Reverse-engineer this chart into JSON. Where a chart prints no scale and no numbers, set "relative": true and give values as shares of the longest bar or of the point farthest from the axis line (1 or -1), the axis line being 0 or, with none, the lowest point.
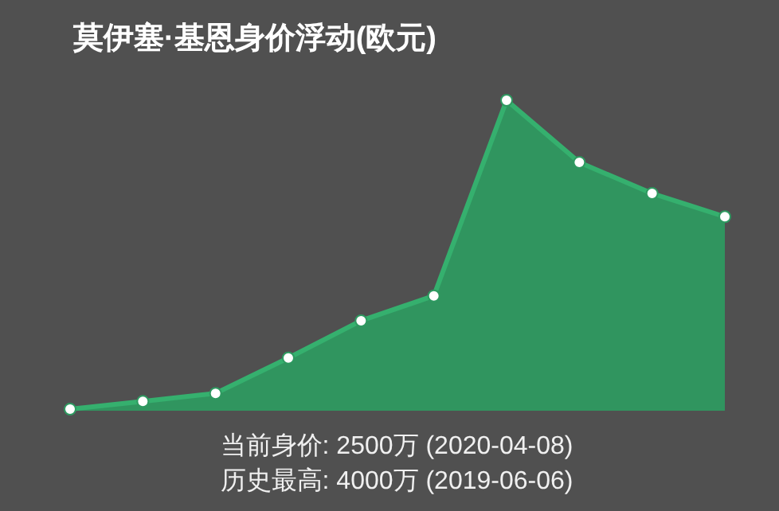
{
  "chart_data": {
    "type": "area",
    "title": "莫伊塞·基恩身价浮动(欧元)",
    "categories": [
      null,
      null,
      null,
      null,
      null,
      null,
      null,
      null,
      null,
      null
    ],
    "values": [
      0.005,
      0.03,
      0.056,
      0.17,
      0.29,
      0.37,
      1,
      0.8,
      0.7,
      0.625
    ],
    "color": "#2e9960",
    "relative": true,
    "marker": "circle",
    "annotations": [
      "当前身价: 2500万 (2020-04-08)",
      "历史最高: 4000万 (2019-06-06)"
    ]
  }
}
